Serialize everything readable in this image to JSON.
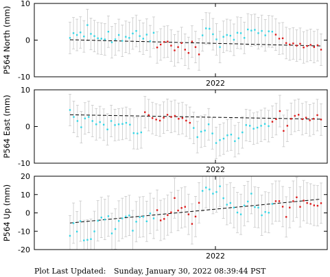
{
  "footer": {
    "label": "Plot Last Updated:",
    "timestamp": "Sunday, January 30, 2022 08:39:44 PST"
  },
  "colors": {
    "early_points": "#33d6e6",
    "late_points": "#dd1a1a",
    "error_bars": "#c8c8c8",
    "trend": "#000000",
    "frame": "#000000"
  },
  "chart_data": [
    {
      "type": "scatter",
      "ylabel": "P564 North (mm)",
      "ylim": [
        -10,
        10
      ],
      "yticks": [
        -10,
        0,
        10
      ],
      "x_tick_label": "2022",
      "error_bar": 4.3,
      "trend": [
        0.1,
        -1.6
      ],
      "early": [
        0.6,
        1.9,
        1.4,
        2.1,
        1.0,
        4.1,
        1.7,
        1.1,
        0.5,
        0.4,
        0.2,
        2.3,
        -0.6,
        0.2,
        1.4,
        -0.2,
        0.9,
        0.6,
        1.8,
        2.5,
        1.1,
        0.4,
        1.5,
        -0.3,
        2.0
      ],
      "mid": [
        -2.0,
        -1.2,
        -0.5,
        -0.4,
        -1.5,
        -2.8,
        -1.9,
        -0.8,
        -2.6,
        -3.5,
        -0.4,
        -1.9,
        -3.9
      ],
      "mid2": [
        1.3,
        3.2,
        3.1,
        1.6,
        0.2,
        -1.9,
        0.9,
        1.4,
        1.2,
        0.1,
        2.0,
        1.9,
        0.6,
        2.9,
        2.6,
        2.8,
        1.9,
        2.5,
        1.3,
        2.4,
        2.3
      ],
      "late": [
        1.5,
        0.4,
        0.5,
        -0.8,
        -1.2,
        -0.9,
        -1.5,
        -1.0,
        -2.0,
        -1.6,
        -1.3,
        -1.9,
        -1.4,
        -2.6
      ]
    },
    {
      "type": "scatter",
      "ylabel": "P564 East (mm)",
      "ylim": [
        -10,
        10
      ],
      "yticks": [
        -10,
        0,
        10
      ],
      "x_tick_label": "2022",
      "error_bar": 4.3,
      "trend": [
        3.2,
        2.0
      ],
      "early": [
        4.5,
        2.6,
        1.5,
        -0.2,
        2.2,
        2.6,
        1.5,
        0.6,
        1.2,
        0.5,
        -0.8,
        1.5,
        0.4,
        0.6,
        0.7,
        1.0,
        0.5,
        -1.8,
        -1.9,
        -1.6
      ],
      "mid": [
        3.9,
        3.1,
        2.3,
        1.9,
        1.6,
        2.4,
        3.2,
        2.6,
        2.9,
        2.1,
        2.3,
        1.6,
        1.0
      ],
      "mid2": [
        -0.4,
        -2.9,
        -1.4,
        -1.1,
        0.6,
        -1.9,
        -4.5,
        -3.7,
        -3.3,
        -2.4,
        -2.2,
        -4.0,
        -3.2,
        -1.6,
        0.4,
        0.2,
        -0.6,
        -0.3,
        0.2,
        0.7,
        0.1
      ],
      "late": [
        1.3,
        2.0,
        4.2,
        -1.2,
        0.2,
        2.1,
        2.9,
        3.2,
        2.0,
        2.4,
        1.7,
        2.1,
        3.1,
        1.9
      ]
    },
    {
      "type": "scatter",
      "ylabel": "P564 Up (mm)",
      "ylim": [
        -20,
        20
      ],
      "yticks": [
        -20,
        -10,
        0,
        10,
        20
      ],
      "x_tick_label": "2022",
      "error_bar": 11,
      "trend": [
        -5.5,
        7.5
      ],
      "early": [
        -12.5,
        -5.6,
        -10.2,
        -4.5,
        -15.0,
        -14.7,
        -14.3,
        -10.1,
        -4.3,
        -2.5,
        -3.6,
        -1.8,
        -11.2,
        -8.8,
        -4.4,
        -3.0,
        -2.0,
        -1.4,
        -9.7,
        -4.8,
        -2.3,
        -2.1,
        -4.6,
        -0.3,
        -3.0
      ],
      "mid": [
        1.5,
        -4.1,
        -3.3,
        -1.2,
        0.3,
        8.1,
        1.3,
        2.7,
        3.3,
        -0.8,
        -6.0,
        -2.0,
        5.5
      ],
      "mid2": [
        12.0,
        13.8,
        12.8,
        10.5,
        11.4,
        14.5,
        8.0,
        4.5,
        5.4,
        2.9,
        0.2,
        -0.8,
        4.0,
        6.2,
        10.5,
        3.2,
        2.9,
        -1.3,
        0.5,
        0.1,
        4.9
      ],
      "late": [
        6.4,
        6.4,
        3.4,
        -2.2,
        2.9,
        6.4,
        8.5,
        3.3,
        6.7,
        5.4,
        4.9,
        4.1,
        3.9,
        5.3
      ]
    }
  ]
}
